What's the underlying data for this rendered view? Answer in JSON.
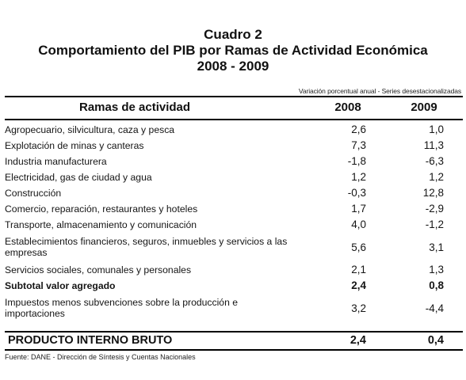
{
  "title": {
    "line1": "Cuadro 2",
    "line2": "Comportamiento del PIB por Ramas de Actividad Económica",
    "line3": "2008 - 2009"
  },
  "note": "Variación porcentual anual - Series desestacionalizadas",
  "header": {
    "rama": "Ramas de actividad",
    "y1": "2008",
    "y2": "2009"
  },
  "rows": [
    {
      "label": "Agropecuario, silvicultura, caza y pesca",
      "v2008": "2,6",
      "v2009": "1,0"
    },
    {
      "label": "Explotación de minas y canteras",
      "v2008": "7,3",
      "v2009": "11,3"
    },
    {
      "label": "Industria manufacturera",
      "v2008": "-1,8",
      "v2009": "-6,3"
    },
    {
      "label": "Electricidad, gas de ciudad y agua",
      "v2008": "1,2",
      "v2009": "1,2"
    },
    {
      "label": "Construcción",
      "v2008": "-0,3",
      "v2009": "12,8"
    },
    {
      "label": "Comercio, reparación, restaurantes y hoteles",
      "v2008": "1,7",
      "v2009": "-2,9"
    },
    {
      "label": "Transporte, almacenamiento y comunicación",
      "v2008": "4,0",
      "v2009": "-1,2"
    },
    {
      "label": "Establecimientos financieros, seguros, inmuebles y servicios a las empresas",
      "v2008": "5,6",
      "v2009": "3,1"
    },
    {
      "label": "Servicios sociales, comunales y personales",
      "v2008": "2,1",
      "v2009": "1,3"
    },
    {
      "label": "Subtotal valor agregado",
      "v2008": "2,4",
      "v2009": "0,8"
    },
    {
      "label": "Impuestos menos subvenciones sobre la producción e importaciones",
      "v2008": "3,2",
      "v2009": "-4,4"
    }
  ],
  "total": {
    "label": "PRODUCTO INTERNO BRUTO",
    "v2008": "2,4",
    "v2009": "0,4"
  },
  "source": "Fuente: DANE - Dirección de Síntesis y Cuentas Nacionales"
}
